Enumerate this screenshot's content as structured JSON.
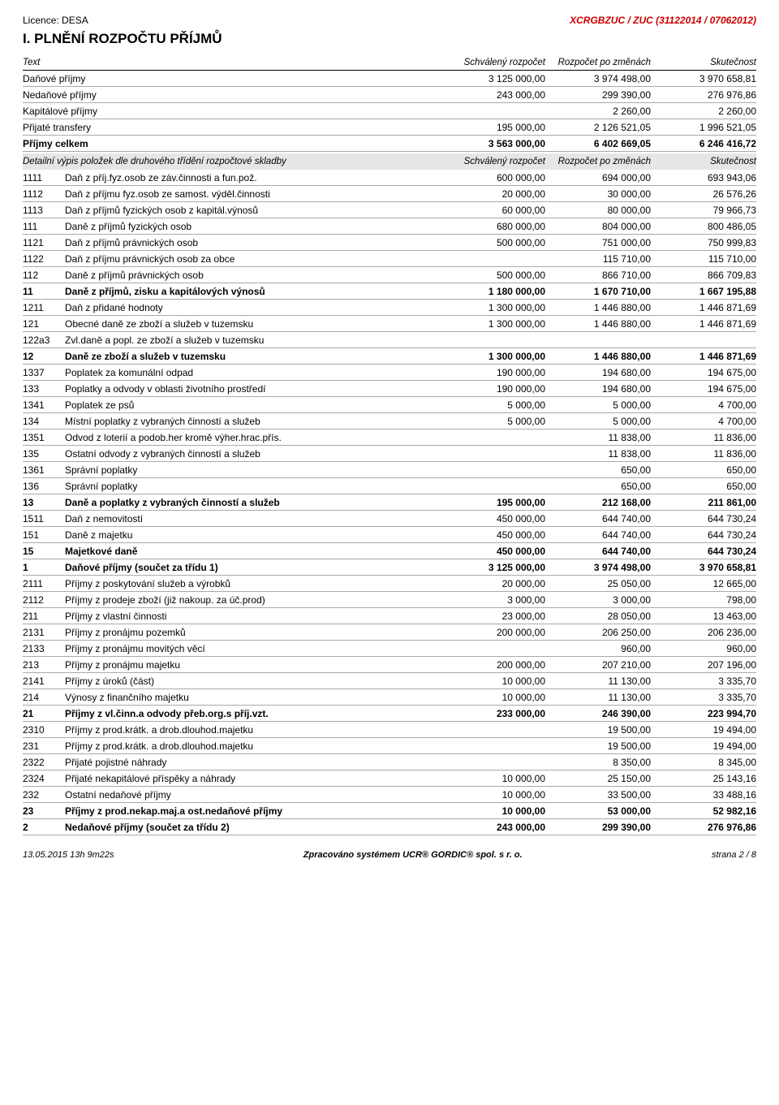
{
  "header": {
    "licence": "Licence: DESA",
    "code": "XCRGBZUC / ZUC (31122014 / 07062012)"
  },
  "title": "I. PLNĚNÍ ROZPOČTU PŘÍJMŮ",
  "cols": {
    "text": "Text",
    "c1": "Schválený rozpočet",
    "c2": "Rozpočet po změnách",
    "c3": "Skutečnost"
  },
  "summary": [
    {
      "text": "Daňové příjmy",
      "v1": "3 125 000,00",
      "v2": "3 974 498,00",
      "v3": "3 970 658,81"
    },
    {
      "text": "Nedaňové příjmy",
      "v1": "243 000,00",
      "v2": "299 390,00",
      "v3": "276 976,86"
    },
    {
      "text": "Kapitálové příjmy",
      "v1": "",
      "v2": "2 260,00",
      "v3": "2 260,00"
    },
    {
      "text": "Přijaté transfery",
      "v1": "195 000,00",
      "v2": "2 126 521,05",
      "v3": "1 996 521,05"
    },
    {
      "text": "Příjmy celkem",
      "v1": "3 563 000,00",
      "v2": "6 402 669,05",
      "v3": "6 246 416,72",
      "bold": true
    }
  ],
  "detail_hdr": "Detailní výpis položek dle druhového třídění rozpočtové skladby",
  "rows": [
    {
      "code": "1111",
      "text": "Daň z příj.fyz.osob ze záv.činnosti a fun.pož.",
      "v1": "600 000,00",
      "v2": "694 000,00",
      "v3": "693 943,06"
    },
    {
      "code": "1112",
      "text": "Daň z příjmu fyz.osob ze samost. výděl.činnosti",
      "v1": "20 000,00",
      "v2": "30 000,00",
      "v3": "26 576,26"
    },
    {
      "code": "1113",
      "text": "Daň z příjmů fyzických osob z kapitál.výnosů",
      "v1": "60 000,00",
      "v2": "80 000,00",
      "v3": "79 966,73"
    },
    {
      "code": "111",
      "text": "Daně z příjmů fyzických osob",
      "v1": "680 000,00",
      "v2": "804 000,00",
      "v3": "800 486,05"
    },
    {
      "code": "1121",
      "text": "Daň z příjmů právnických osob",
      "v1": "500 000,00",
      "v2": "751 000,00",
      "v3": "750 999,83"
    },
    {
      "code": "1122",
      "text": "Daň z příjmu právnických osob za obce",
      "v1": "",
      "v2": "115 710,00",
      "v3": "115 710,00"
    },
    {
      "code": "112",
      "text": "Daně z příjmů právnických osob",
      "v1": "500 000,00",
      "v2": "866 710,00",
      "v3": "866 709,83"
    },
    {
      "code": "11",
      "text": "Daně z příjmů, zisku a kapitálových výnosů",
      "v1": "1 180 000,00",
      "v2": "1 670 710,00",
      "v3": "1 667 195,88",
      "bold": true
    },
    {
      "code": "1211",
      "text": "Daň z přidané hodnoty",
      "v1": "1 300 000,00",
      "v2": "1 446 880,00",
      "v3": "1 446 871,69"
    },
    {
      "code": "121",
      "text": "Obecné daně ze zboží a služeb v tuzemsku",
      "v1": "1 300 000,00",
      "v2": "1 446 880,00",
      "v3": "1 446 871,69"
    },
    {
      "code": "122a3",
      "text": "Zvl.daně a popl. ze zboží a služeb v tuzemsku",
      "v1": "",
      "v2": "",
      "v3": ""
    },
    {
      "code": "12",
      "text": "Daně ze zboží a služeb v tuzemsku",
      "v1": "1 300 000,00",
      "v2": "1 446 880,00",
      "v3": "1 446 871,69",
      "bold": true
    },
    {
      "code": "1337",
      "text": "Poplatek za komunální odpad",
      "v1": "190 000,00",
      "v2": "194 680,00",
      "v3": "194 675,00"
    },
    {
      "code": "133",
      "text": "Poplatky a odvody v oblasti životního prostředí",
      "v1": "190 000,00",
      "v2": "194 680,00",
      "v3": "194 675,00"
    },
    {
      "code": "1341",
      "text": "Poplatek ze psů",
      "v1": "5 000,00",
      "v2": "5 000,00",
      "v3": "4 700,00"
    },
    {
      "code": "134",
      "text": "Místní poplatky z vybraných činností a služeb",
      "v1": "5 000,00",
      "v2": "5 000,00",
      "v3": "4 700,00"
    },
    {
      "code": "1351",
      "text": "Odvod z loterií a podob.her kromě výher.hrac.přís.",
      "v1": "",
      "v2": "11 838,00",
      "v3": "11 836,00"
    },
    {
      "code": "135",
      "text": "Ostatní odvody z vybraných činností a služeb",
      "v1": "",
      "v2": "11 838,00",
      "v3": "11 836,00"
    },
    {
      "code": "1361",
      "text": "Správní poplatky",
      "v1": "",
      "v2": "650,00",
      "v3": "650,00"
    },
    {
      "code": "136",
      "text": "Správní poplatky",
      "v1": "",
      "v2": "650,00",
      "v3": "650,00"
    },
    {
      "code": "13",
      "text": "Daně a poplatky z vybraných činností a služeb",
      "v1": "195 000,00",
      "v2": "212 168,00",
      "v3": "211 861,00",
      "bold": true
    },
    {
      "code": "1511",
      "text": "Daň z nemovitostí",
      "v1": "450 000,00",
      "v2": "644 740,00",
      "v3": "644 730,24"
    },
    {
      "code": "151",
      "text": "Daně z majetku",
      "v1": "450 000,00",
      "v2": "644 740,00",
      "v3": "644 730,24"
    },
    {
      "code": "15",
      "text": "Majetkové daně",
      "v1": "450 000,00",
      "v2": "644 740,00",
      "v3": "644 730,24",
      "bold": true
    },
    {
      "code": "1",
      "text": "Daňové příjmy (součet za třídu 1)",
      "v1": "3 125 000,00",
      "v2": "3 974 498,00",
      "v3": "3 970 658,81",
      "bold": true
    },
    {
      "code": "2111",
      "text": "Příjmy z poskytování služeb a výrobků",
      "v1": "20 000,00",
      "v2": "25 050,00",
      "v3": "12 665,00"
    },
    {
      "code": "2112",
      "text": "Příjmy z prodeje zboží (již nakoup. za úč.prod)",
      "v1": "3 000,00",
      "v2": "3 000,00",
      "v3": "798,00"
    },
    {
      "code": "211",
      "text": "Příjmy z vlastní činnosti",
      "v1": "23 000,00",
      "v2": "28 050,00",
      "v3": "13 463,00"
    },
    {
      "code": "2131",
      "text": "Příjmy z pronájmu pozemků",
      "v1": "200 000,00",
      "v2": "206 250,00",
      "v3": "206 236,00"
    },
    {
      "code": "2133",
      "text": "Příjmy z pronájmu movitých věcí",
      "v1": "",
      "v2": "960,00",
      "v3": "960,00"
    },
    {
      "code": "213",
      "text": "Příjmy z pronájmu majetku",
      "v1": "200 000,00",
      "v2": "207 210,00",
      "v3": "207 196,00"
    },
    {
      "code": "2141",
      "text": "Příjmy z úroků (část)",
      "v1": "10 000,00",
      "v2": "11 130,00",
      "v3": "3 335,70"
    },
    {
      "code": "214",
      "text": "Výnosy z finančního majetku",
      "v1": "10 000,00",
      "v2": "11 130,00",
      "v3": "3 335,70"
    },
    {
      "code": "21",
      "text": "Příjmy z vl.činn.a odvody přeb.org.s příj.vzt.",
      "v1": "233 000,00",
      "v2": "246 390,00",
      "v3": "223 994,70",
      "bold": true
    },
    {
      "code": "2310",
      "text": "Příjmy z prod.krátk. a drob.dlouhod.majetku",
      "v1": "",
      "v2": "19 500,00",
      "v3": "19 494,00"
    },
    {
      "code": "231",
      "text": "Příjmy z prod.krátk. a drob.dlouhod.majetku",
      "v1": "",
      "v2": "19 500,00",
      "v3": "19 494,00"
    },
    {
      "code": "2322",
      "text": "Přijaté pojistné náhrady",
      "v1": "",
      "v2": "8 350,00",
      "v3": "8 345,00"
    },
    {
      "code": "2324",
      "text": "Přijaté nekapitálové příspěky a náhrady",
      "v1": "10 000,00",
      "v2": "25 150,00",
      "v3": "25 143,16"
    },
    {
      "code": "232",
      "text": "Ostatní nedaňové příjmy",
      "v1": "10 000,00",
      "v2": "33 500,00",
      "v3": "33 488,16"
    },
    {
      "code": "23",
      "text": "Příjmy z prod.nekap.maj.a ost.nedaňové příjmy",
      "v1": "10 000,00",
      "v2": "53 000,00",
      "v3": "52 982,16",
      "bold": true
    },
    {
      "code": "2",
      "text": "Nedaňové příjmy (součet za třídu 2)",
      "v1": "243 000,00",
      "v2": "299 390,00",
      "v3": "276 976,86",
      "bold": true
    }
  ],
  "footer": {
    "left": "13.05.2015 13h 9m22s",
    "mid": "Zpracováno systémem UCR® GORDIC® spol. s r. o.",
    "right": "strana 2 / 8"
  }
}
